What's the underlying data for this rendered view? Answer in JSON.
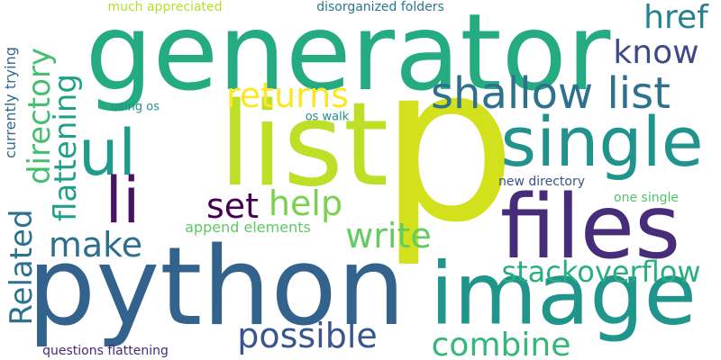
{
  "words": [
    {
      "id": "p",
      "text": "p",
      "color": "#d2e11b"
    },
    {
      "id": "list",
      "text": "list",
      "color": "#bddf26"
    },
    {
      "id": "generator",
      "text": "generator",
      "color": "#25ab82"
    },
    {
      "id": "python",
      "text": "python",
      "color": "#33638d"
    },
    {
      "id": "files",
      "text": "files",
      "color": "#472c7a"
    },
    {
      "id": "image",
      "text": "image",
      "color": "#1f958b"
    },
    {
      "id": "single",
      "text": "single",
      "color": "#20938c"
    },
    {
      "id": "shallow-list",
      "text": "shallow list",
      "color": "#2d718e"
    },
    {
      "id": "ul",
      "text": "ul",
      "color": "#1e9b8a"
    },
    {
      "id": "li",
      "text": "li",
      "color": "#471365"
    },
    {
      "id": "set",
      "text": "set",
      "color": "#440154"
    },
    {
      "id": "returns",
      "text": "returns",
      "color": "#fde725"
    },
    {
      "id": "help",
      "text": "help",
      "color": "#7ad151"
    },
    {
      "id": "write",
      "text": "write",
      "color": "#63cb5f"
    },
    {
      "id": "make",
      "text": "make",
      "color": "#2e6f8e"
    },
    {
      "id": "possible",
      "text": "possible",
      "color": "#39568c"
    },
    {
      "id": "combine",
      "text": "combine",
      "color": "#35b779"
    },
    {
      "id": "stackoverflow",
      "text": "stackoverflow",
      "color": "#29af7f"
    },
    {
      "id": "know",
      "text": "know",
      "color": "#3e4989"
    },
    {
      "id": "href",
      "text": "href",
      "color": "#26828e"
    },
    {
      "id": "directory",
      "text": "directory",
      "color": "#44bf70"
    },
    {
      "id": "flattening",
      "text": "flattening",
      "color": "#1fa088"
    },
    {
      "id": "related",
      "text": "Related",
      "color": "#2c728e"
    },
    {
      "id": "currently-trying",
      "text": "currently trying",
      "color": "#31688e"
    },
    {
      "id": "append-elements",
      "text": "append elements",
      "color": "#5ec962"
    },
    {
      "id": "new-directory",
      "text": "new directory",
      "color": "#3b528b"
    },
    {
      "id": "one-single",
      "text": "one single",
      "color": "#52c569"
    },
    {
      "id": "os-walk",
      "text": "os walk",
      "color": "#21918c"
    },
    {
      "id": "using-os",
      "text": "using os",
      "color": "#21918c"
    },
    {
      "id": "much-appreciated",
      "text": "much appreciated",
      "color": "#b5de2b"
    },
    {
      "id": "disorganized-folders",
      "text": "disorganized folders",
      "color": "#2a788e"
    },
    {
      "id": "questions-flattening",
      "text": "questions flattening",
      "color": "#482878"
    }
  ]
}
